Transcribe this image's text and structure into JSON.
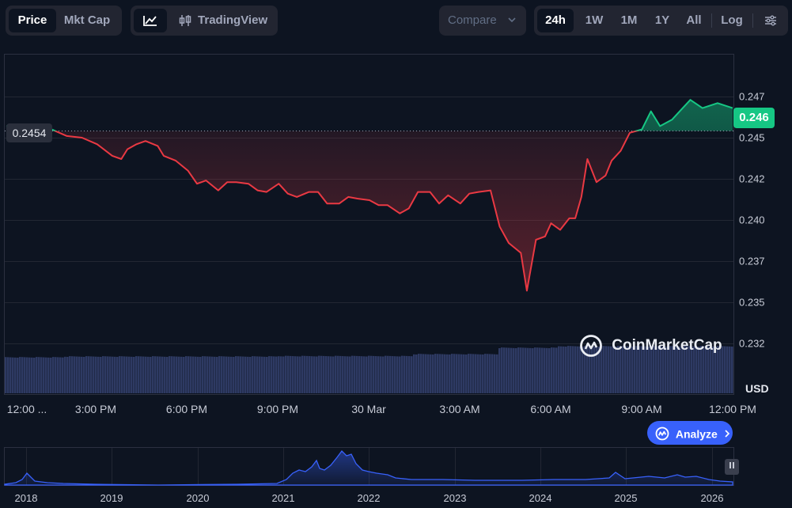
{
  "toolbar": {
    "price_label": "Price",
    "mktcap_label": "Mkt Cap",
    "tradingview_label": "TradingView",
    "compare_label": "Compare",
    "ranges": [
      "24h",
      "1W",
      "1M",
      "1Y",
      "All"
    ],
    "active_range": "24h",
    "log_label": "Log"
  },
  "current_price_tag": "0.246",
  "reference_price_tag": "0.2454",
  "currency_label": "USD",
  "watermark": "CoinMarketCap",
  "analyze_label": "Analyze",
  "colors": {
    "background": "#0d1421",
    "up": "#16c784",
    "down": "#ea3943",
    "volume": "#2e3a63",
    "accent": "#3861fb"
  },
  "chart_data": [
    {
      "type": "line",
      "title": "",
      "y_ticks": [
        "0.247",
        "0.245",
        "0.242",
        "0.240",
        "0.237",
        "0.235",
        "0.232"
      ],
      "x_ticks": [
        "12:00 ...",
        "3:00 PM",
        "6:00 PM",
        "9:00 PM",
        "30 Mar",
        "3:00 AM",
        "6:00 AM",
        "9:00 AM",
        "12:00 PM"
      ],
      "ylim": [
        0.231,
        0.2482
      ],
      "reference_value": 0.2454,
      "grid": true,
      "series": [
        {
          "x_hours": [
            0,
            0.5,
            1,
            1.5,
            2,
            2.5,
            3,
            3.5,
            3.8,
            4,
            4.3,
            4.6,
            5,
            5.2,
            5.6,
            6,
            6.3,
            6.6,
            7,
            7.3,
            7.6,
            8,
            8.3,
            8.6,
            9,
            9.3,
            9.6,
            10,
            10.3,
            10.6,
            11,
            11.3,
            11.6,
            12,
            12.3,
            12.6,
            13,
            13.3,
            13.6,
            14,
            14.3,
            14.6,
            15,
            15.3,
            15.6,
            16,
            16.3,
            16.6,
            17,
            17.2,
            17.5,
            17.8,
            18,
            18.3,
            18.6,
            18.8,
            19,
            19.2,
            19.5,
            19.8,
            20,
            20.3,
            20.6,
            21,
            21.3,
            21.6,
            22,
            22.3,
            22.6,
            23,
            23.5,
            24
          ],
          "values": [
            0.2452,
            0.2451,
            0.2451,
            0.245,
            0.2446,
            0.2445,
            0.2441,
            0.2434,
            0.2432,
            0.2438,
            0.2441,
            0.2443,
            0.244,
            0.2434,
            0.2431,
            0.2425,
            0.2417,
            0.2419,
            0.2413,
            0.2418,
            0.2418,
            0.2417,
            0.2413,
            0.2412,
            0.2417,
            0.2411,
            0.2409,
            0.2412,
            0.2412,
            0.2405,
            0.2405,
            0.2409,
            0.2408,
            0.2407,
            0.2404,
            0.2404,
            0.2399,
            0.2402,
            0.2412,
            0.2412,
            0.2405,
            0.241,
            0.2405,
            0.2411,
            0.2412,
            0.2413,
            0.2391,
            0.2381,
            0.2375,
            0.2352,
            0.2383,
            0.2385,
            0.2393,
            0.2389,
            0.2396,
            0.2396,
            0.2409,
            0.2432,
            0.2418,
            0.2422,
            0.2431,
            0.2437,
            0.2448,
            0.245,
            0.2461,
            0.2452,
            0.2456,
            0.2462,
            0.2468,
            0.2463,
            0.2466,
            0.2463
          ]
        }
      ]
    },
    {
      "type": "area",
      "x_ticks": [
        "2018",
        "2019",
        "2020",
        "2021",
        "2022",
        "2023",
        "2024",
        "2025",
        "2026"
      ]
    }
  ]
}
